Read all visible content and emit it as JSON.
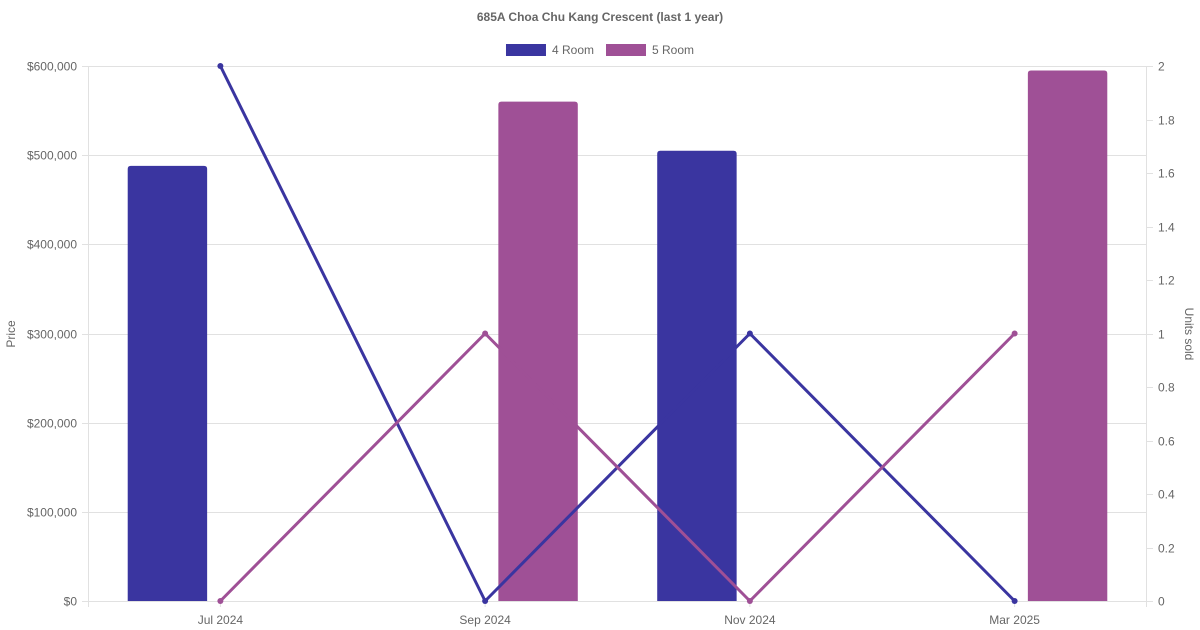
{
  "chart_data": {
    "type": "bar",
    "title": "685A Choa Chu Kang Crescent (last 1 year)",
    "categories": [
      "Jul 2024",
      "Sep 2024",
      "Nov 2024",
      "Mar 2025"
    ],
    "y_left": {
      "label": "Price",
      "min": 0,
      "max": 600000,
      "ticks": [
        "$0",
        "$100,000",
        "$200,000",
        "$300,000",
        "$400,000",
        "$500,000",
        "$600,000"
      ],
      "tick_values": [
        0,
        100000,
        200000,
        300000,
        400000,
        500000,
        600000
      ]
    },
    "y_right": {
      "label": "Units sold",
      "min": 0,
      "max": 2,
      "ticks": [
        "0",
        "0.2",
        "0.4",
        "0.6",
        "0.8",
        "1",
        "1.2",
        "1.4",
        "1.6",
        "1.8",
        "2"
      ],
      "tick_values": [
        0,
        0.2,
        0.4,
        0.6,
        0.8,
        1,
        1.2,
        1.4,
        1.6,
        1.8,
        2
      ]
    },
    "grid": true,
    "legend_position": "top",
    "series": [
      {
        "name": "4 Room",
        "color": "#3a35a0",
        "price": [
          488000,
          null,
          505000,
          null
        ],
        "units": [
          2,
          0,
          1,
          0
        ]
      },
      {
        "name": "5 Room",
        "color": "#9f5096",
        "price": [
          null,
          560000,
          null,
          595000
        ],
        "units": [
          0,
          1,
          0,
          1
        ]
      }
    ]
  }
}
